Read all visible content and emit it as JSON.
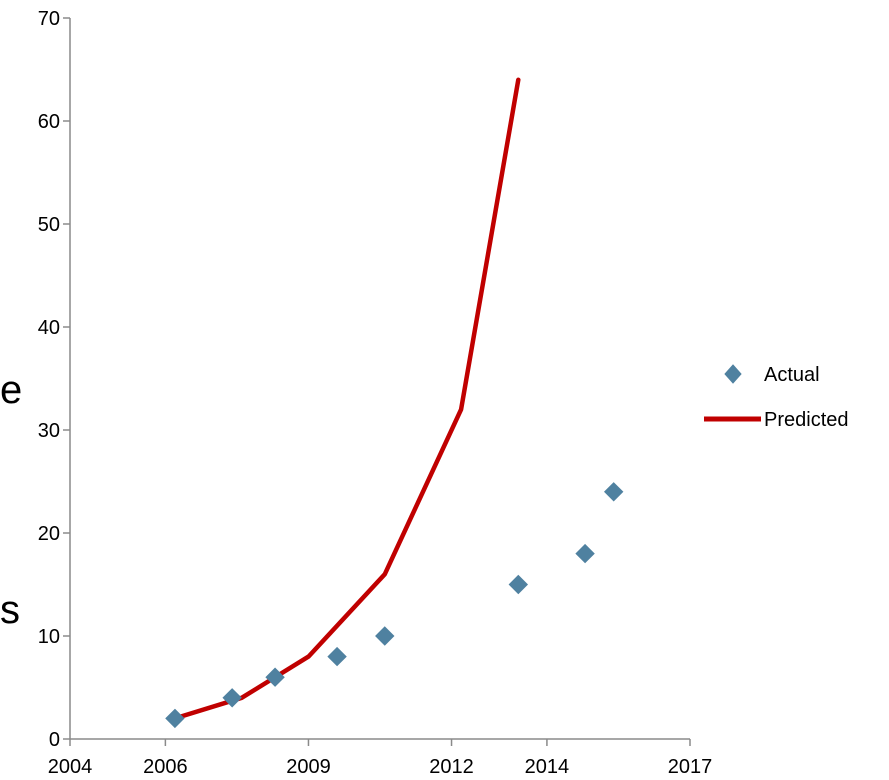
{
  "chart_data": {
    "type": "scatter",
    "title": "",
    "xlabel": "",
    "ylabel": "",
    "xlim": [
      2004,
      2017
    ],
    "ylim": [
      0,
      70
    ],
    "x_ticks": [
      2004,
      2006,
      2009,
      2012,
      2014,
      2017
    ],
    "y_ticks": [
      0,
      10,
      20,
      30,
      40,
      50,
      60,
      70
    ],
    "grid": false,
    "legend": "right",
    "cropped_text_fragments": [
      "e",
      "s"
    ],
    "series": [
      {
        "name": "Actual",
        "type": "scatter",
        "marker": "diamond-icon",
        "color": "#4f81a0",
        "points": [
          {
            "x": 2006.2,
            "y": 2
          },
          {
            "x": 2007.4,
            "y": 4
          },
          {
            "x": 2008.3,
            "y": 6
          },
          {
            "x": 2009.6,
            "y": 8
          },
          {
            "x": 2010.6,
            "y": 10
          },
          {
            "x": 2013.4,
            "y": 15
          },
          {
            "x": 2014.8,
            "y": 18
          },
          {
            "x": 2015.4,
            "y": 24
          }
        ]
      },
      {
        "name": "Predicted",
        "type": "line",
        "color": "#c00000",
        "points": [
          {
            "x": 2006.2,
            "y": 2
          },
          {
            "x": 2007.6,
            "y": 4
          },
          {
            "x": 2009.0,
            "y": 8
          },
          {
            "x": 2010.6,
            "y": 16
          },
          {
            "x": 2012.2,
            "y": 32
          },
          {
            "x": 2013.4,
            "y": 64
          }
        ]
      }
    ]
  }
}
